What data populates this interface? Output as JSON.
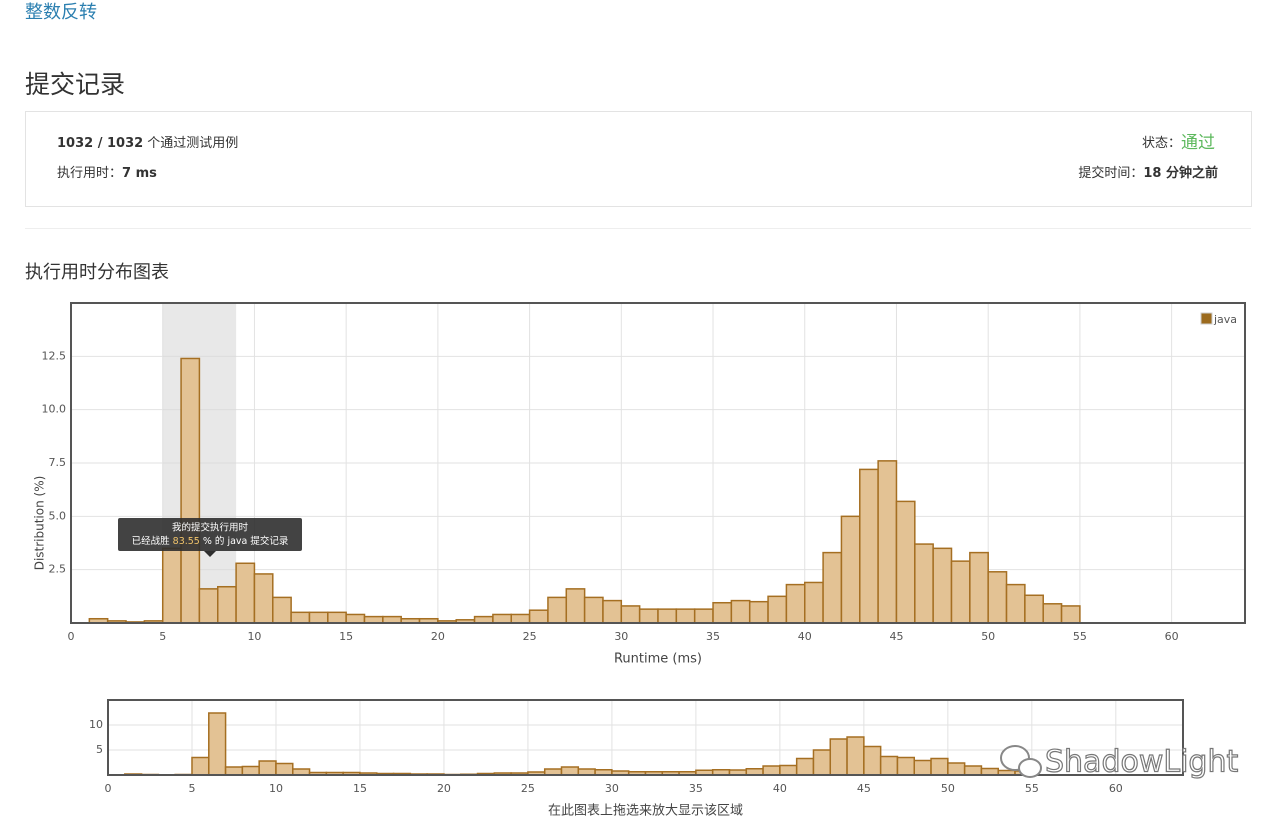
{
  "problem_link": "整数反转",
  "heading": "提交记录",
  "summary": {
    "passed": "1032 / 1032",
    "passed_suffix": " 个通过测试用例",
    "runtime_label": "执行用时：",
    "runtime": "7 ms",
    "status_label": "状态：",
    "status": "通过",
    "time_label": "提交时间：",
    "time": "18 分钟之前"
  },
  "chart_heading": "执行用时分布图表",
  "tooltip": {
    "line1": "我的提交执行用时",
    "prefix": "已经战胜 ",
    "percent": "83.55",
    "suffix": " % 的 java 提交记录"
  },
  "watermark": "ShadowLight",
  "chart_data": [
    {
      "type": "histogram",
      "x_label": "Runtime (ms)",
      "y_label": "Distribution (%)",
      "legend": "java",
      "color": "#e3c294",
      "edge_color": "#a56f22",
      "legend_color": "#9c6b1e",
      "grid": true,
      "highlight": [
        5,
        9
      ],
      "bins": [
        1,
        2,
        3,
        4,
        5,
        6,
        7,
        8,
        9,
        10,
        11,
        12,
        13,
        14,
        15,
        16,
        17,
        18,
        19,
        20,
        21,
        22,
        23,
        24,
        25,
        26,
        27,
        28,
        29,
        30,
        31,
        32,
        33,
        34,
        35,
        36,
        37,
        38,
        39,
        40,
        41,
        42,
        43,
        44,
        45,
        46,
        47,
        48,
        49,
        50,
        51,
        52,
        53,
        54,
        55
      ],
      "values": [
        0.2,
        0.1,
        0.05,
        0.1,
        3.5,
        12.4,
        1.6,
        1.7,
        2.8,
        2.3,
        1.2,
        0.5,
        0.5,
        0.5,
        0.4,
        0.3,
        0.3,
        0.2,
        0.2,
        0.1,
        0.15,
        0.3,
        0.4,
        0.4,
        0.6,
        1.2,
        1.6,
        1.2,
        1.05,
        0.8,
        0.65,
        0.65,
        0.65,
        0.65,
        0.95,
        1.05,
        1.0,
        1.25,
        1.8,
        1.9,
        3.3,
        5.0,
        7.2,
        7.6,
        5.7,
        3.7,
        3.5,
        2.9,
        3.3,
        2.4,
        1.8,
        1.3,
        0.9,
        0.8
      ],
      "xlim": [
        0,
        64
      ],
      "ylim": [
        0,
        15
      ],
      "xticks": [
        0,
        5,
        10,
        15,
        20,
        25,
        30,
        35,
        40,
        45,
        50,
        55,
        60
      ],
      "yticks": [
        2.5,
        {
          "value": 5,
          "label": "5.0"
        },
        7.5,
        {
          "value": 10,
          "label": "10.0"
        },
        12.5
      ]
    },
    {
      "type": "histogram",
      "x_label": "在此图表上拖选来放大显示该区域",
      "color": "#e3c294",
      "edge_color": "#a56f22",
      "grid": true,
      "bins": [
        1,
        2,
        3,
        4,
        5,
        6,
        7,
        8,
        9,
        10,
        11,
        12,
        13,
        14,
        15,
        16,
        17,
        18,
        19,
        20,
        21,
        22,
        23,
        24,
        25,
        26,
        27,
        28,
        29,
        30,
        31,
        32,
        33,
        34,
        35,
        36,
        37,
        38,
        39,
        40,
        41,
        42,
        43,
        44,
        45,
        46,
        47,
        48,
        49,
        50,
        51,
        52,
        53,
        54,
        55
      ],
      "values": [
        0.2,
        0.1,
        0.05,
        0.1,
        3.5,
        12.4,
        1.6,
        1.7,
        2.8,
        2.3,
        1.2,
        0.5,
        0.5,
        0.5,
        0.4,
        0.3,
        0.3,
        0.2,
        0.2,
        0.1,
        0.15,
        0.3,
        0.4,
        0.4,
        0.6,
        1.2,
        1.6,
        1.2,
        1.05,
        0.8,
        0.65,
        0.65,
        0.65,
        0.65,
        0.95,
        1.05,
        1.0,
        1.25,
        1.8,
        1.9,
        3.3,
        5.0,
        7.2,
        7.6,
        5.7,
        3.7,
        3.5,
        2.9,
        3.3,
        2.4,
        1.8,
        1.3,
        0.9,
        0.8
      ],
      "xlim": [
        0,
        64
      ],
      "ylim": [
        0,
        15
      ],
      "xticks": [
        0,
        5,
        10,
        15,
        20,
        25,
        30,
        35,
        40,
        45,
        50,
        55,
        60
      ],
      "yticks": [
        5,
        10
      ]
    }
  ]
}
